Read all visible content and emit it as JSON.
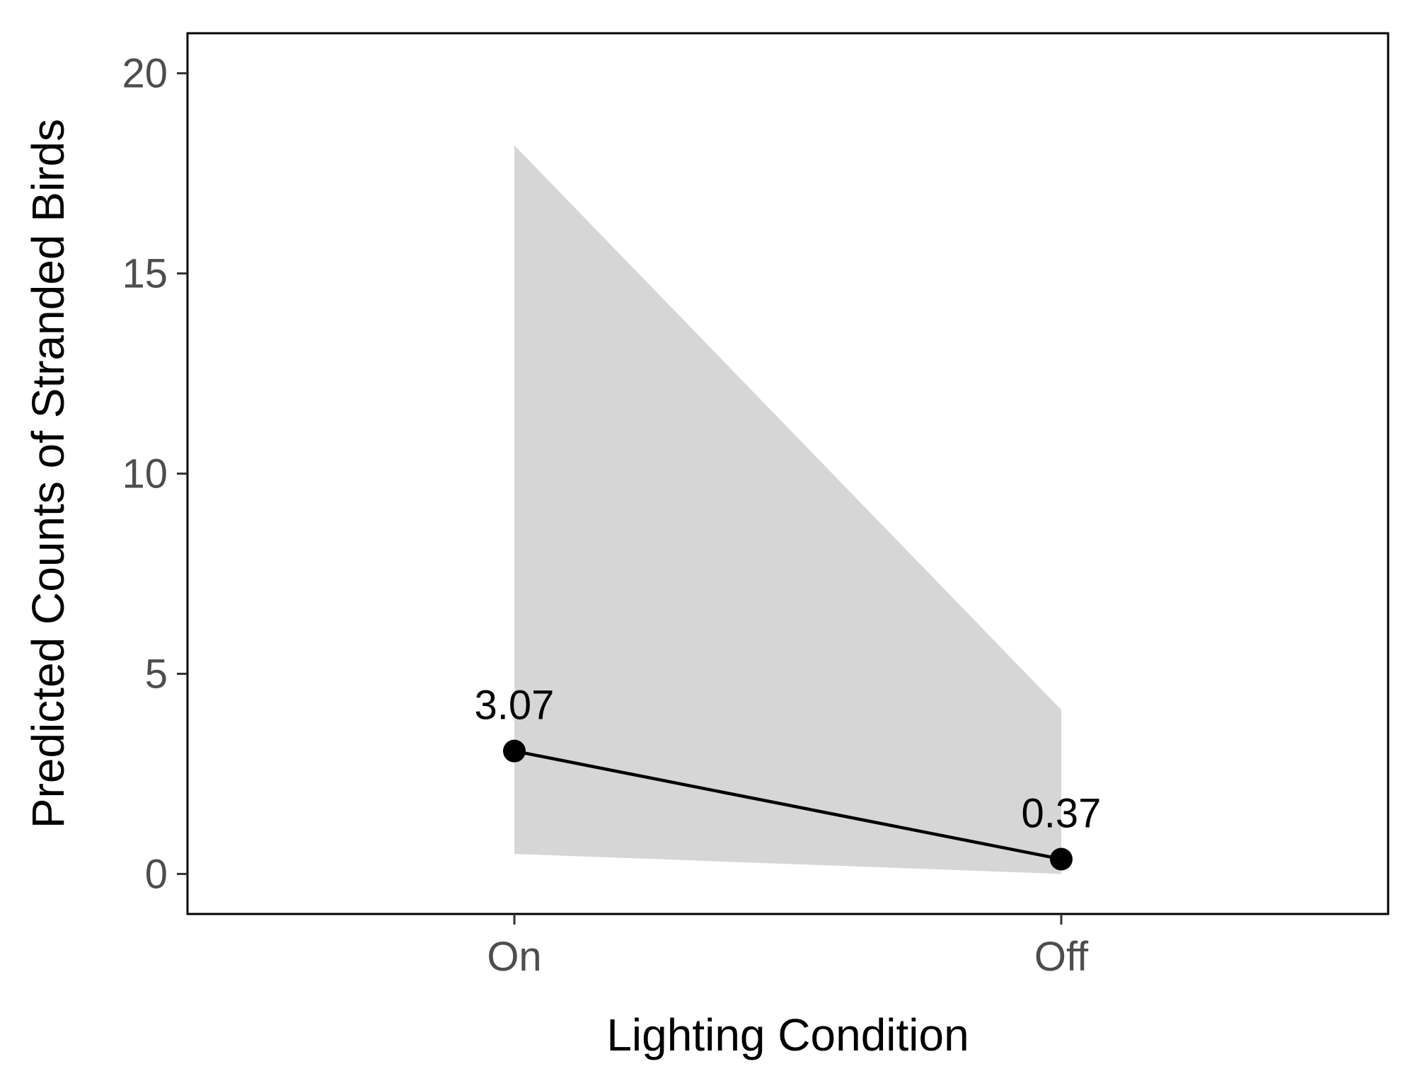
{
  "chart_data": {
    "type": "line",
    "title": "",
    "xlabel": "Lighting Condition",
    "ylabel": "Predicted Counts of Stranded Birds",
    "categories": [
      "On",
      "Off"
    ],
    "series": [
      {
        "values": [
          3.07,
          0.37
        ],
        "lower": [
          0.5,
          0.0
        ],
        "upper": [
          18.2,
          4.1
        ],
        "labels": [
          "3.07",
          "0.37"
        ]
      }
    ],
    "y_ticks": [
      0,
      5,
      10,
      15,
      20
    ],
    "y_tick_labels": [
      "0",
      "5",
      "10",
      "15",
      "20"
    ],
    "ylim": [
      -1,
      21
    ],
    "grid": false,
    "legend": "none",
    "colors": {
      "line": "#000000",
      "point": "#000000",
      "ribbon": "#d6d6d6",
      "panel_border": "#000000",
      "tick_label": "#4d4d4d"
    }
  }
}
